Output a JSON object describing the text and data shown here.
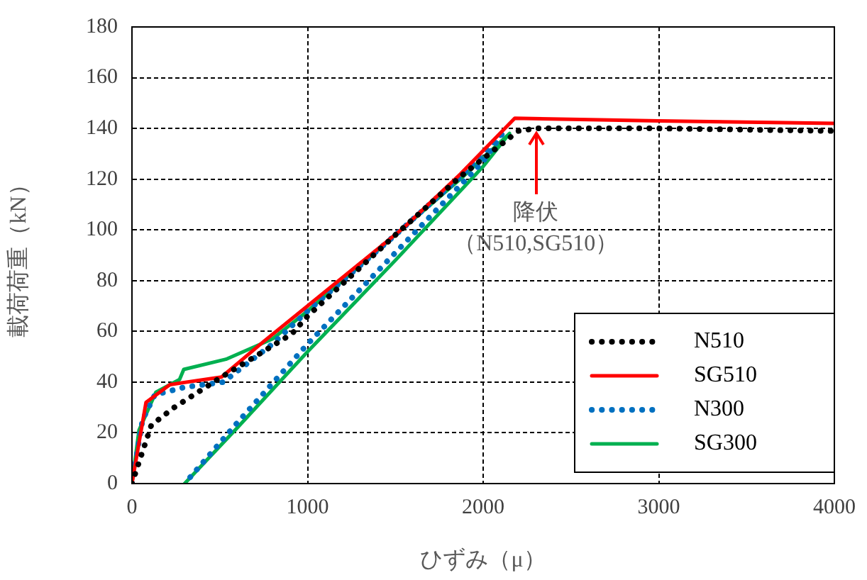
{
  "chart_data": {
    "type": "line",
    "xlabel": "ひずみ（μ）",
    "ylabel": "載荷荷重（kN）",
    "xlim": [
      0,
      4000
    ],
    "xticks": [
      0,
      1000,
      2000,
      3000,
      4000
    ],
    "ylim": [
      0,
      180
    ],
    "yticks": [
      0,
      20,
      40,
      60,
      80,
      100,
      120,
      140,
      160,
      180
    ],
    "grid": true,
    "legend": "bottom right",
    "marker": "none",
    "series": [
      {
        "name": "N510",
        "color": "#000000",
        "line_style": "dotted",
        "x": [
          0,
          110,
          240,
          510,
          700,
          910,
          1000,
          1500,
          1870,
          2200,
          2300,
          3000,
          4000
        ],
        "values": [
          0,
          23,
          30,
          42,
          50,
          59,
          66,
          98,
          121,
          139,
          140,
          140,
          139
        ]
      },
      {
        "name": "SG510",
        "color": "#ff0000",
        "line_style": "solid",
        "x": [
          0,
          80,
          216,
          510,
          750,
          1000,
          1550,
          1870,
          2180,
          3000,
          4000
        ],
        "values": [
          0,
          32,
          39,
          42,
          56,
          70,
          101,
          122,
          144,
          143,
          142
        ]
      },
      {
        "name": "N300",
        "color": "#0070c0",
        "line_style": "dotted",
        "x": [
          0,
          60,
          130,
          300,
          520,
          800,
          1000,
          1500,
          1870,
          2120,
          2000,
          1500,
          1000,
          600,
          375,
          300
        ],
        "values": [
          0,
          25,
          35,
          38,
          40,
          55,
          68,
          98,
          121,
          139,
          127,
          91,
          55,
          24,
          6,
          0
        ]
      },
      {
        "name": "SG300",
        "color": "#00b050",
        "line_style": "solid",
        "x": [
          0,
          40,
          136,
          271,
          295,
          535,
          800,
          1000,
          1500,
          1870,
          2150,
          2000,
          1500,
          1000,
          600,
          300
        ],
        "values": [
          0,
          21,
          36,
          41,
          45,
          49,
          57,
          68,
          98,
          120,
          138,
          125,
          88,
          52,
          22,
          0
        ]
      }
    ],
    "annotations": [
      {
        "text": "降伏",
        "x": 2300,
        "y": 140
      },
      "（N510,SG510）"
    ]
  }
}
